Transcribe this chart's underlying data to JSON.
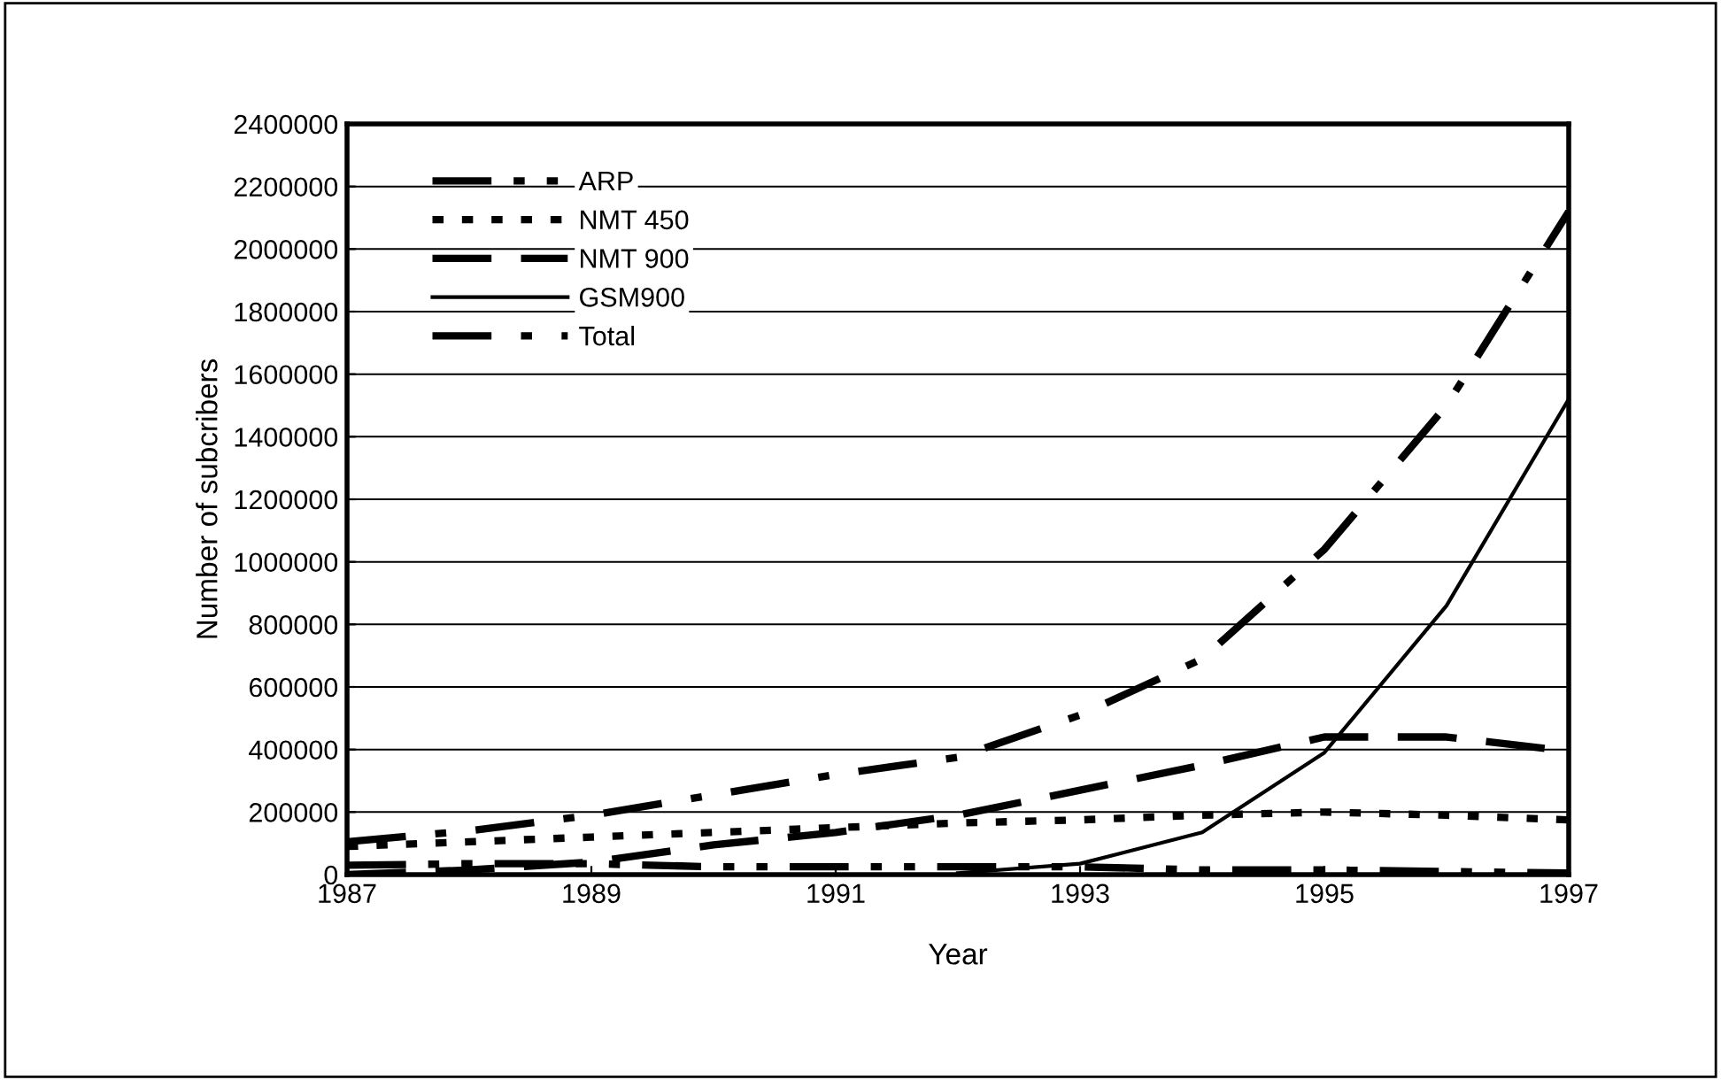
{
  "chart_data": {
    "type": "line",
    "xlabel": "Year",
    "ylabel": "Number of subcribers",
    "x": [
      1987,
      1988,
      1989,
      1990,
      1991,
      1992,
      1993,
      1994,
      1995,
      1996,
      1997
    ],
    "series": [
      {
        "name": "ARP",
        "color": "#000000",
        "line_style": "dashdotdot",
        "values": [
          30000,
          35000,
          35000,
          25000,
          25000,
          25000,
          25000,
          15000,
          15000,
          10000,
          5000
        ]
      },
      {
        "name": "NMT 450",
        "color": "#000000",
        "line_style": "dotted",
        "values": [
          90000,
          105000,
          120000,
          135000,
          150000,
          165000,
          175000,
          190000,
          200000,
          190000,
          175000
        ]
      },
      {
        "name": "NMT 900",
        "color": "#000000",
        "line_style": "dashed",
        "values": [
          0,
          15000,
          40000,
          95000,
          135000,
          190000,
          270000,
          350000,
          440000,
          440000,
          395000
        ]
      },
      {
        "name": "GSM900",
        "color": "#000000",
        "line_style": "solid",
        "values": [
          null,
          null,
          null,
          null,
          null,
          5000,
          35000,
          135000,
          390000,
          860000,
          1520000
        ]
      },
      {
        "name": "Total",
        "color": "#000000",
        "line_style": "dashdot",
        "values": [
          105000,
          140000,
          190000,
          255000,
          320000,
          375000,
          510000,
          690000,
          1040000,
          1500000,
          2120000
        ]
      }
    ],
    "xlim": [
      1987,
      1997
    ],
    "xticks": [
      1987,
      1989,
      1991,
      1993,
      1995,
      1997
    ],
    "ylim": [
      0,
      2400000
    ],
    "yticks": [
      0,
      200000,
      400000,
      600000,
      800000,
      1000000,
      1200000,
      1400000,
      1600000,
      1800000,
      2000000,
      2200000,
      2400000
    ],
    "grid": "y",
    "legend": "top left",
    "marker": "none"
  }
}
